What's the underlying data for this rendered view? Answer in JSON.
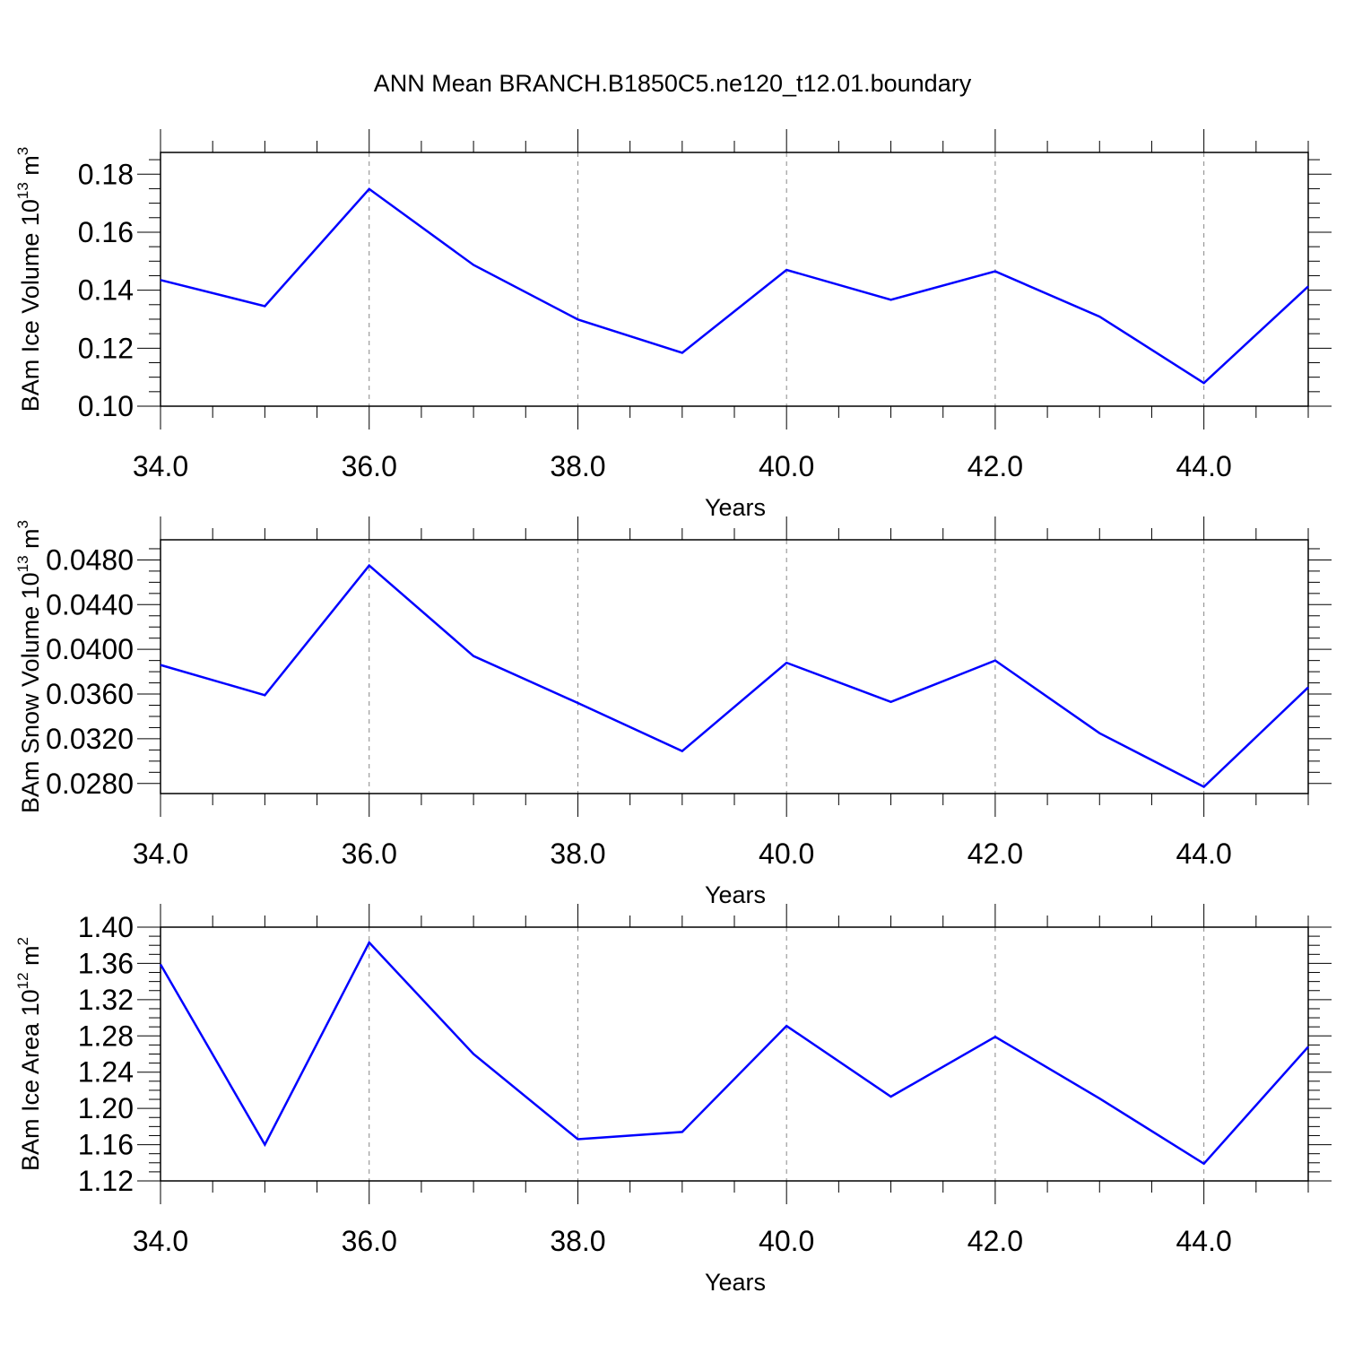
{
  "page": {
    "title": "ANN Mean BRANCH.B1850C5.ne120_t12.01.boundary"
  },
  "colors": {
    "series": "#0000ff",
    "axis": "#000000",
    "grid": "#888888"
  },
  "chart_data": [
    {
      "type": "line",
      "xlabel": "Years",
      "ylabel": {
        "text": "BAm Ice Volume 10",
        "exp": "13",
        "unit": " m",
        "unit_exp": "3"
      },
      "xlim": [
        34,
        45
      ],
      "ylim": [
        0.1,
        0.1875
      ],
      "xticks": [
        34,
        36,
        38,
        40,
        42,
        44
      ],
      "xtick_labels": [
        "34.0",
        "36.0",
        "38.0",
        "40.0",
        "42.0",
        "44.0"
      ],
      "yticks": [
        0.1,
        0.12,
        0.14,
        0.16,
        0.18
      ],
      "ytick_labels": [
        "0.10",
        "0.12",
        "0.14",
        "0.16",
        "0.18"
      ],
      "grid": "vertical dashed at labeled x ticks",
      "series": [
        {
          "x": [
            34,
            35,
            36,
            37,
            38,
            39,
            40,
            41,
            42,
            43,
            44,
            45
          ],
          "values": [
            0.1435,
            0.1345,
            0.1749,
            0.1487,
            0.1299,
            0.1184,
            0.147,
            0.1367,
            0.1465,
            0.1309,
            0.108,
            0.1413
          ]
        }
      ]
    },
    {
      "type": "line",
      "xlabel": "Years",
      "ylabel": {
        "text": "BAm Snow Volume 10",
        "exp": "13",
        "unit": " m",
        "unit_exp": "3"
      },
      "xlim": [
        34,
        45
      ],
      "ylim": [
        0.0271,
        0.0498
      ],
      "xticks": [
        34,
        36,
        38,
        40,
        42,
        44
      ],
      "xtick_labels": [
        "34.0",
        "36.0",
        "38.0",
        "40.0",
        "42.0",
        "44.0"
      ],
      "yticks": [
        0.028,
        0.032,
        0.036,
        0.04,
        0.044,
        0.048
      ],
      "ytick_labels": [
        "0.0280",
        "0.0320",
        "0.0360",
        "0.0400",
        "0.0440",
        "0.0480"
      ],
      "grid": "vertical dashed at labeled x ticks",
      "series": [
        {
          "x": [
            34,
            35,
            36,
            37,
            38,
            39,
            40,
            41,
            42,
            43,
            44,
            45
          ],
          "values": [
            0.0386,
            0.0359,
            0.0475,
            0.0394,
            0.0352,
            0.0309,
            0.0388,
            0.0353,
            0.039,
            0.0325,
            0.0277,
            0.0366
          ]
        }
      ]
    },
    {
      "type": "line",
      "xlabel": "Years",
      "ylabel": {
        "text": "BAm Ice Area 10",
        "exp": "12",
        "unit": " m",
        "unit_exp": "2"
      },
      "xlim": [
        34,
        45
      ],
      "ylim": [
        1.12,
        1.4
      ],
      "xticks": [
        34,
        36,
        38,
        40,
        42,
        44
      ],
      "xtick_labels": [
        "34.0",
        "36.0",
        "38.0",
        "40.0",
        "42.0",
        "44.0"
      ],
      "yticks": [
        1.12,
        1.16,
        1.2,
        1.24,
        1.28,
        1.32,
        1.36,
        1.4
      ],
      "ytick_labels": [
        "1.12",
        "1.16",
        "1.20",
        "1.24",
        "1.28",
        "1.32",
        "1.36",
        "1.40"
      ],
      "grid": "vertical dashed at labeled x ticks",
      "series": [
        {
          "x": [
            34,
            35,
            36,
            37,
            38,
            39,
            40,
            41,
            42,
            43,
            44,
            45
          ],
          "values": [
            1.359,
            1.16,
            1.383,
            1.26,
            1.166,
            1.174,
            1.291,
            1.213,
            1.279,
            1.211,
            1.139,
            1.268
          ]
        }
      ]
    }
  ]
}
